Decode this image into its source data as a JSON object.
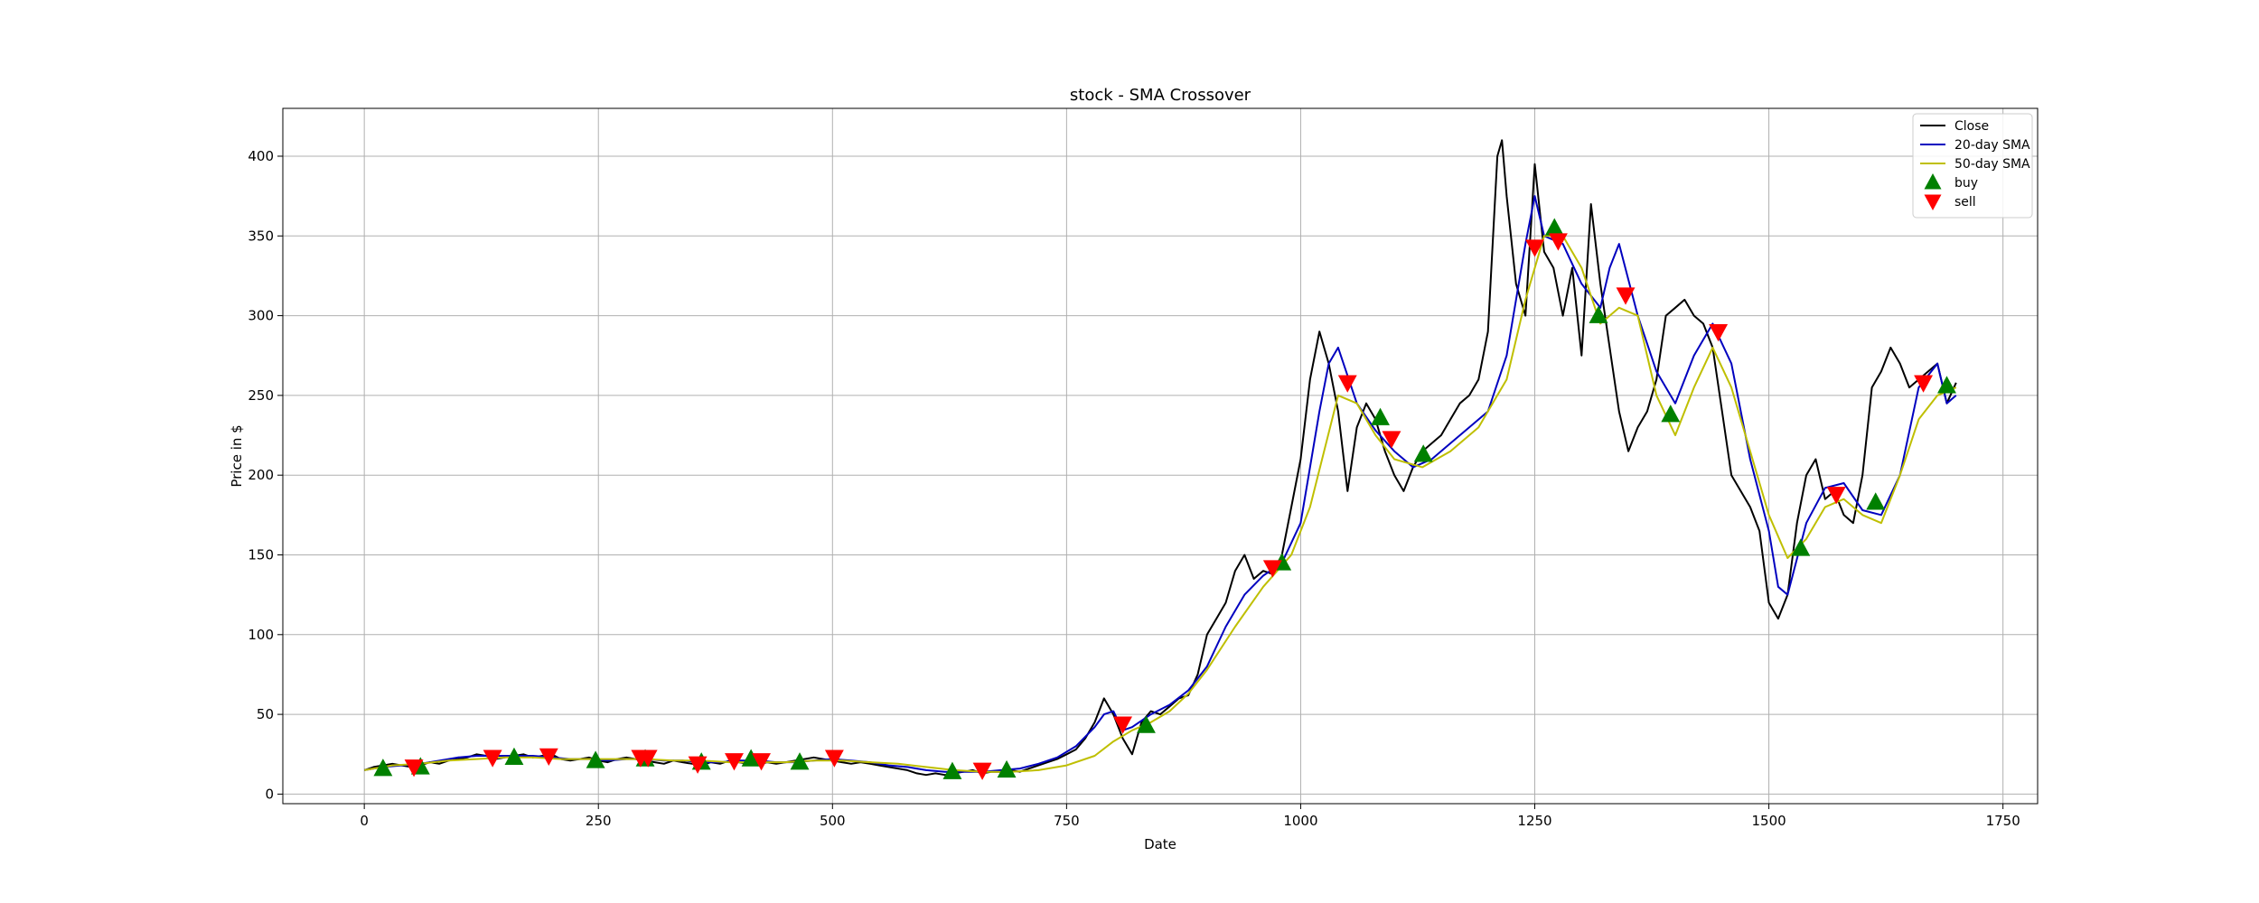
{
  "chart_data": {
    "type": "line",
    "title": "stock - SMA Crossover",
    "xlabel": "Date",
    "ylabel": "Price in $",
    "xlim": [
      -87,
      1787
    ],
    "ylim": [
      -6,
      430
    ],
    "x_ticks": [
      0,
      250,
      500,
      750,
      1000,
      1250,
      1500,
      1750
    ],
    "y_ticks": [
      0,
      50,
      100,
      150,
      200,
      250,
      300,
      350,
      400
    ],
    "grid": true,
    "legend_position": "top-right",
    "series": [
      {
        "name": "Close",
        "color": "#000000",
        "kind": "line",
        "x": [
          0,
          10,
          20,
          30,
          40,
          50,
          60,
          70,
          80,
          90,
          100,
          110,
          120,
          130,
          140,
          150,
          160,
          170,
          180,
          190,
          200,
          210,
          220,
          230,
          240,
          250,
          260,
          270,
          280,
          290,
          300,
          310,
          320,
          330,
          340,
          350,
          360,
          370,
          380,
          390,
          400,
          410,
          420,
          430,
          440,
          450,
          460,
          470,
          480,
          490,
          500,
          510,
          520,
          530,
          540,
          550,
          560,
          570,
          580,
          590,
          600,
          610,
          620,
          630,
          640,
          650,
          660,
          670,
          680,
          690,
          700,
          710,
          720,
          730,
          740,
          750,
          760,
          770,
          780,
          790,
          800,
          810,
          820,
          830,
          840,
          850,
          860,
          870,
          880,
          890,
          900,
          910,
          920,
          930,
          940,
          950,
          960,
          970,
          980,
          990,
          1000,
          1010,
          1020,
          1030,
          1040,
          1050,
          1060,
          1070,
          1080,
          1090,
          1100,
          1110,
          1120,
          1130,
          1140,
          1150,
          1160,
          1170,
          1180,
          1190,
          1200,
          1210,
          1215,
          1220,
          1230,
          1240,
          1250,
          1260,
          1270,
          1280,
          1290,
          1300,
          1310,
          1320,
          1330,
          1340,
          1350,
          1360,
          1370,
          1380,
          1390,
          1400,
          1410,
          1420,
          1430,
          1440,
          1450,
          1460,
          1470,
          1480,
          1490,
          1500,
          1510,
          1520,
          1530,
          1540,
          1550,
          1560,
          1570,
          1580,
          1590,
          1600,
          1610,
          1620,
          1630,
          1640,
          1650,
          1660,
          1670,
          1680,
          1690,
          1700
        ],
        "y": [
          15,
          17,
          18,
          19,
          18,
          17,
          18,
          20,
          19,
          21,
          22,
          23,
          25,
          24,
          22,
          23,
          24,
          25,
          23,
          24,
          25,
          22,
          21,
          22,
          23,
          21,
          20,
          22,
          23,
          22,
          21,
          20,
          19,
          21,
          20,
          19,
          18,
          20,
          19,
          21,
          20,
          19,
          18,
          20,
          19,
          20,
          21,
          22,
          23,
          22,
          21,
          20,
          19,
          20,
          19,
          18,
          17,
          16,
          15,
          13,
          12,
          13,
          12,
          13,
          14,
          15,
          13,
          14,
          14,
          15,
          14,
          16,
          18,
          20,
          22,
          25,
          28,
          35,
          45,
          60,
          50,
          35,
          25,
          45,
          52,
          50,
          55,
          60,
          62,
          75,
          100,
          110,
          120,
          140,
          150,
          135,
          140,
          138,
          150,
          180,
          210,
          260,
          290,
          270,
          240,
          190,
          230,
          245,
          235,
          215,
          200,
          190,
          205,
          215,
          220,
          225,
          235,
          245,
          250,
          260,
          290,
          400,
          410,
          375,
          320,
          300,
          395,
          340,
          330,
          300,
          330,
          275,
          370,
          320,
          280,
          240,
          215,
          230,
          240,
          260,
          300,
          305,
          310,
          300,
          295,
          280,
          240,
          200,
          190,
          180,
          165,
          120,
          110,
          125,
          170,
          200,
          210,
          185,
          190,
          175,
          170,
          200,
          255,
          265,
          280,
          270,
          255,
          260,
          265,
          270,
          245,
          258
        ]
      },
      {
        "name": "20-day SMA",
        "color": "#0000bf",
        "kind": "line",
        "x": [
          0,
          20,
          40,
          60,
          80,
          100,
          120,
          140,
          160,
          180,
          200,
          220,
          240,
          260,
          280,
          300,
          320,
          340,
          360,
          380,
          400,
          420,
          440,
          460,
          480,
          500,
          520,
          540,
          560,
          580,
          600,
          620,
          640,
          660,
          680,
          700,
          720,
          740,
          760,
          780,
          790,
          800,
          810,
          820,
          840,
          860,
          880,
          900,
          920,
          940,
          960,
          980,
          1000,
          1020,
          1030,
          1040,
          1060,
          1080,
          1100,
          1120,
          1140,
          1160,
          1180,
          1200,
          1220,
          1240,
          1250,
          1260,
          1280,
          1300,
          1320,
          1330,
          1340,
          1360,
          1380,
          1400,
          1420,
          1440,
          1460,
          1480,
          1500,
          1510,
          1520,
          1540,
          1560,
          1580,
          1600,
          1620,
          1640,
          1660,
          1680,
          1690,
          1700
        ],
        "y": [
          15,
          17,
          18,
          19,
          21,
          23,
          24,
          24,
          24,
          24,
          23,
          22,
          22,
          21,
          22,
          22,
          21,
          21,
          20,
          20,
          21,
          21,
          20,
          20,
          21,
          22,
          21,
          20,
          18,
          17,
          15,
          14,
          14,
          14,
          15,
          16,
          19,
          23,
          30,
          42,
          50,
          52,
          40,
          42,
          50,
          56,
          65,
          80,
          105,
          125,
          137,
          145,
          170,
          240,
          270,
          280,
          245,
          228,
          215,
          205,
          210,
          220,
          230,
          240,
          275,
          345,
          375,
          350,
          345,
          320,
          305,
          330,
          345,
          300,
          265,
          245,
          275,
          295,
          270,
          210,
          165,
          130,
          125,
          170,
          192,
          195,
          178,
          175,
          200,
          255,
          270,
          245,
          250
        ]
      },
      {
        "name": "50-day SMA",
        "color": "#bfbf00",
        "kind": "line",
        "x": [
          0,
          30,
          60,
          90,
          120,
          150,
          180,
          210,
          240,
          270,
          300,
          330,
          360,
          390,
          420,
          450,
          480,
          510,
          540,
          570,
          600,
          630,
          660,
          690,
          720,
          750,
          780,
          800,
          820,
          840,
          860,
          880,
          900,
          930,
          960,
          990,
          1010,
          1040,
          1060,
          1080,
          1100,
          1130,
          1160,
          1190,
          1220,
          1240,
          1260,
          1280,
          1300,
          1320,
          1340,
          1360,
          1380,
          1400,
          1420,
          1440,
          1460,
          1480,
          1500,
          1520,
          1540,
          1560,
          1580,
          1600,
          1620,
          1640,
          1660,
          1680,
          1700
        ],
        "y": [
          15,
          18,
          19,
          21,
          22,
          23,
          23,
          22,
          22,
          22,
          22,
          21,
          21,
          20,
          20,
          20,
          21,
          21,
          20,
          19,
          17,
          15,
          14,
          14,
          15,
          18,
          24,
          33,
          40,
          45,
          52,
          63,
          78,
          105,
          130,
          150,
          180,
          250,
          245,
          225,
          210,
          205,
          215,
          230,
          260,
          310,
          350,
          350,
          330,
          295,
          305,
          300,
          250,
          225,
          255,
          280,
          255,
          215,
          175,
          148,
          160,
          180,
          185,
          175,
          170,
          200,
          235,
          250,
          255
        ]
      },
      {
        "name": "buy",
        "color": "#008000",
        "kind": "marker-up",
        "x": [
          20,
          60,
          160,
          247,
          300,
          360,
          413,
          465,
          628,
          686,
          835,
          980,
          1085,
          1131,
          1271,
          1318,
          1395,
          1534,
          1614,
          1690
        ],
        "y": [
          16,
          17,
          23,
          21,
          22,
          20,
          22,
          20,
          14,
          15,
          43,
          145,
          236,
          213,
          355,
          300,
          238,
          154,
          183,
          256
        ]
      },
      {
        "name": "sell",
        "color": "#ff0000",
        "kind": "marker-down",
        "x": [
          53,
          137,
          197,
          295,
          303,
          356,
          395,
          424,
          502,
          660,
          810,
          970,
          1050,
          1097,
          1250,
          1275,
          1347,
          1446,
          1572,
          1665
        ],
        "y": [
          17,
          23,
          24,
          23,
          23,
          19,
          21,
          21,
          23,
          15,
          44,
          142,
          258,
          223,
          343,
          347,
          313,
          290,
          188,
          258
        ]
      }
    ]
  }
}
